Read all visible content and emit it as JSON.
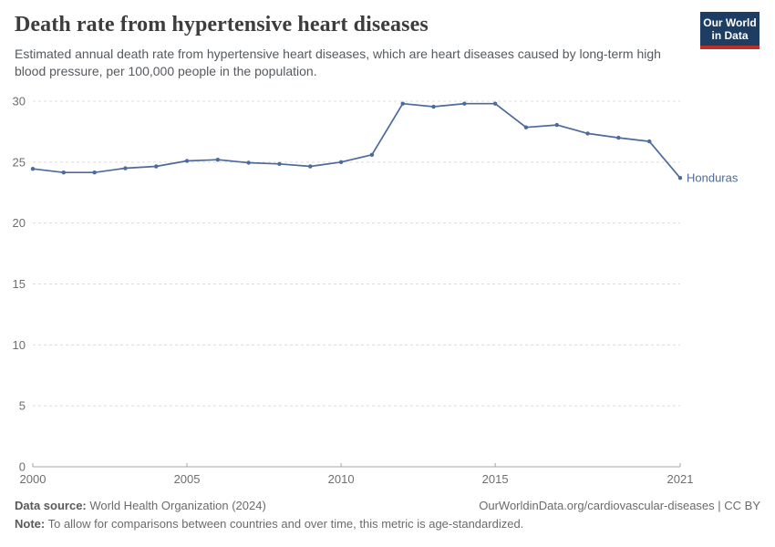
{
  "header": {
    "title": "Death rate from hypertensive heart diseases",
    "subtitle": "Estimated annual death rate from hypertensive heart diseases, which are heart diseases caused by long-term high blood pressure, per 100,000 people in the population.",
    "logo": {
      "line1": "Our World",
      "line2": "in Data"
    }
  },
  "chart_data": {
    "type": "line",
    "title": "Death rate from hypertensive heart diseases",
    "xlabel": "",
    "ylabel": "",
    "ylim": [
      0,
      30
    ],
    "yticks": [
      0,
      5,
      10,
      15,
      20,
      25,
      30
    ],
    "xticks": [
      2000,
      2005,
      2010,
      2015,
      2021
    ],
    "grid": "horizontal-dashed",
    "legend_position": "end-of-line",
    "x": [
      2000,
      2001,
      2002,
      2003,
      2004,
      2005,
      2006,
      2007,
      2008,
      2009,
      2010,
      2011,
      2012,
      2013,
      2014,
      2015,
      2016,
      2017,
      2018,
      2019,
      2020,
      2021
    ],
    "series": [
      {
        "name": "Honduras",
        "color": "#4C6A9C",
        "values": [
          24.45,
          24.15,
          24.15,
          24.5,
          24.65,
          25.1,
          25.2,
          24.95,
          24.85,
          24.65,
          25.0,
          25.6,
          29.8,
          29.55,
          29.8,
          29.8,
          27.85,
          28.05,
          27.35,
          27.0,
          26.7,
          23.7
        ]
      }
    ]
  },
  "footer": {
    "datasource_label": "Data source:",
    "datasource_value": " World Health Organization (2024)",
    "attribution": "OurWorldinData.org/cardiovascular-diseases | CC BY",
    "note_label": "Note:",
    "note_value": " To allow for comparisons between countries and over time, this metric is age-standardized."
  },
  "colors": {
    "line": "#4C6A9C",
    "grid": "#dcdcdc",
    "axis": "#a5a5a5",
    "tick_label": "#6e6e6e",
    "logo_bg": "#1D3D63",
    "logo_stripe": "#BE2F28"
  }
}
